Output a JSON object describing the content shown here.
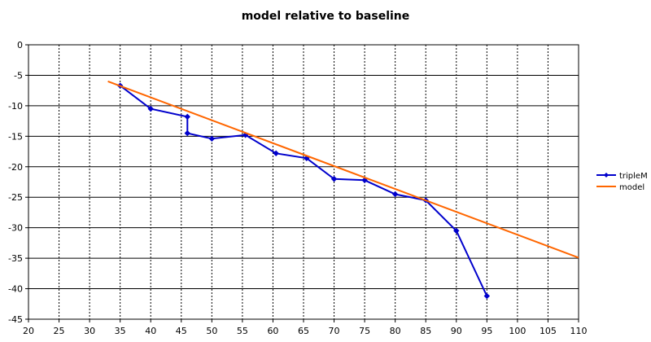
{
  "chart_data": {
    "type": "line",
    "title": "model relative to baseline",
    "xlabel": "",
    "ylabel": "",
    "xlim": [
      20,
      110
    ],
    "ylim": [
      -45,
      0
    ],
    "x_ticks": [
      "20",
      "25",
      "30",
      "35",
      "40",
      "45",
      "50",
      "55",
      "60",
      "65",
      "70",
      "75",
      "80",
      "85",
      "90",
      "95",
      "100",
      "105",
      "110"
    ],
    "y_ticks": [
      "0",
      "-5",
      "-10",
      "-15",
      "-20",
      "-25",
      "-30",
      "-35",
      "-40",
      "-45"
    ],
    "grid": true,
    "legend_position": "right",
    "series": [
      {
        "name": "tripleM",
        "color": "#0000cc",
        "marker": "diamond",
        "points": [
          {
            "x": 35,
            "y": -6.7
          },
          {
            "x": 40,
            "y": -10.5
          },
          {
            "x": 46,
            "y": -11.8
          },
          {
            "x": 46,
            "y": -14.5
          },
          {
            "x": 50,
            "y": -15.4
          },
          {
            "x": 55.5,
            "y": -14.8
          },
          {
            "x": 60.5,
            "y": -17.8
          },
          {
            "x": 65.5,
            "y": -18.6
          },
          {
            "x": 70,
            "y": -22.0
          },
          {
            "x": 75,
            "y": -22.2
          },
          {
            "x": 80,
            "y": -24.5
          },
          {
            "x": 85,
            "y": -25.5
          },
          {
            "x": 90,
            "y": -30.5
          },
          {
            "x": 95,
            "y": -41.2
          }
        ]
      },
      {
        "name": "model",
        "color": "#ff6600",
        "marker": "none",
        "points": [
          {
            "x": 33,
            "y": -6.0
          },
          {
            "x": 110,
            "y": -34.9
          }
        ]
      }
    ]
  }
}
